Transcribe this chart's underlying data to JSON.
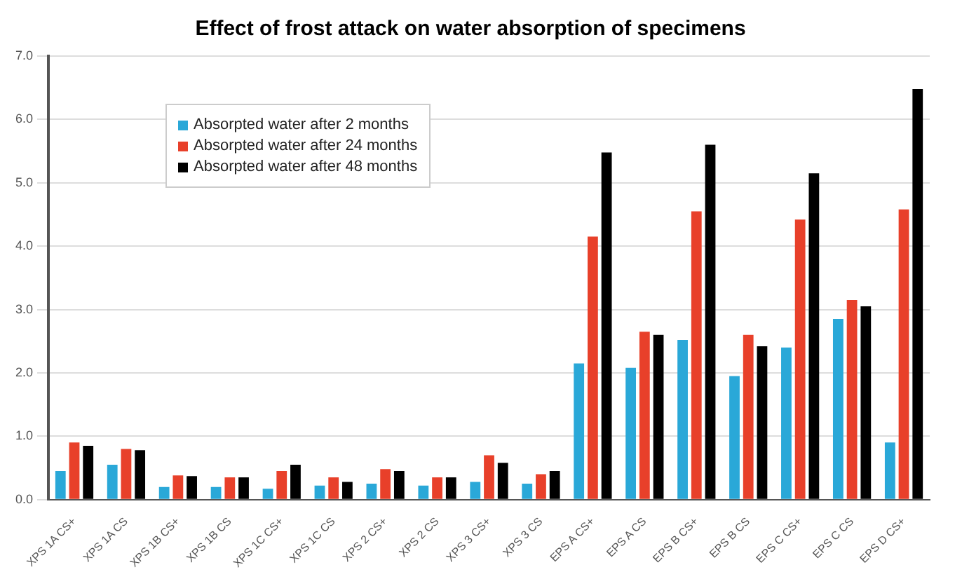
{
  "chart_data": {
    "type": "bar",
    "title": "Effect of frost attack on water absorption of specimens",
    "categories": [
      "XPS 1A CS+",
      "XPS 1A CS",
      "XPS 1B CS+",
      "XPS 1B CS",
      "XPS 1C CS+",
      "XPS 1C CS",
      "XPS 2 CS+",
      "XPS 2 CS",
      "XPS 3 CS+",
      "XPS 3 CS",
      "EPS A CS+",
      "EPS A CS",
      "EPS B CS+",
      "EPS B CS",
      "EPS C CS+",
      "EPS C CS",
      "EPS D CS+"
    ],
    "series": [
      {
        "name": "Absorpted water after 2 months",
        "color": "#2aa8d8",
        "values": [
          0.45,
          0.55,
          0.2,
          0.2,
          0.17,
          0.22,
          0.25,
          0.22,
          0.28,
          0.25,
          2.15,
          2.08,
          2.52,
          1.95,
          2.4,
          2.85,
          0.9
        ]
      },
      {
        "name": "Absorpted water after 24 months",
        "color": "#e8402a",
        "values": [
          0.9,
          0.8,
          0.38,
          0.35,
          0.45,
          0.35,
          0.48,
          0.35,
          0.7,
          0.4,
          4.15,
          2.65,
          4.55,
          2.6,
          4.42,
          3.15,
          4.58
        ]
      },
      {
        "name": "Absorpted water after 48 months",
        "color": "#000000",
        "values": [
          0.85,
          0.78,
          0.37,
          0.35,
          0.55,
          0.28,
          0.45,
          0.35,
          0.58,
          0.45,
          5.48,
          2.6,
          5.6,
          2.42,
          5.15,
          3.05,
          6.48
        ]
      }
    ],
    "ylim": [
      0,
      7
    ],
    "yticks": [
      {
        "value": 0,
        "label": "0.0"
      },
      {
        "value": 1,
        "label": "1.0"
      },
      {
        "value": 2,
        "label": "2.0"
      },
      {
        "value": 3,
        "label": "3.0"
      },
      {
        "value": 4,
        "label": "4.0"
      },
      {
        "value": 5,
        "label": "5.0"
      },
      {
        "value": 6,
        "label": "6.0"
      },
      {
        "value": 7,
        "label": "7.0"
      }
    ],
    "grid": "y",
    "legend": "top left"
  }
}
